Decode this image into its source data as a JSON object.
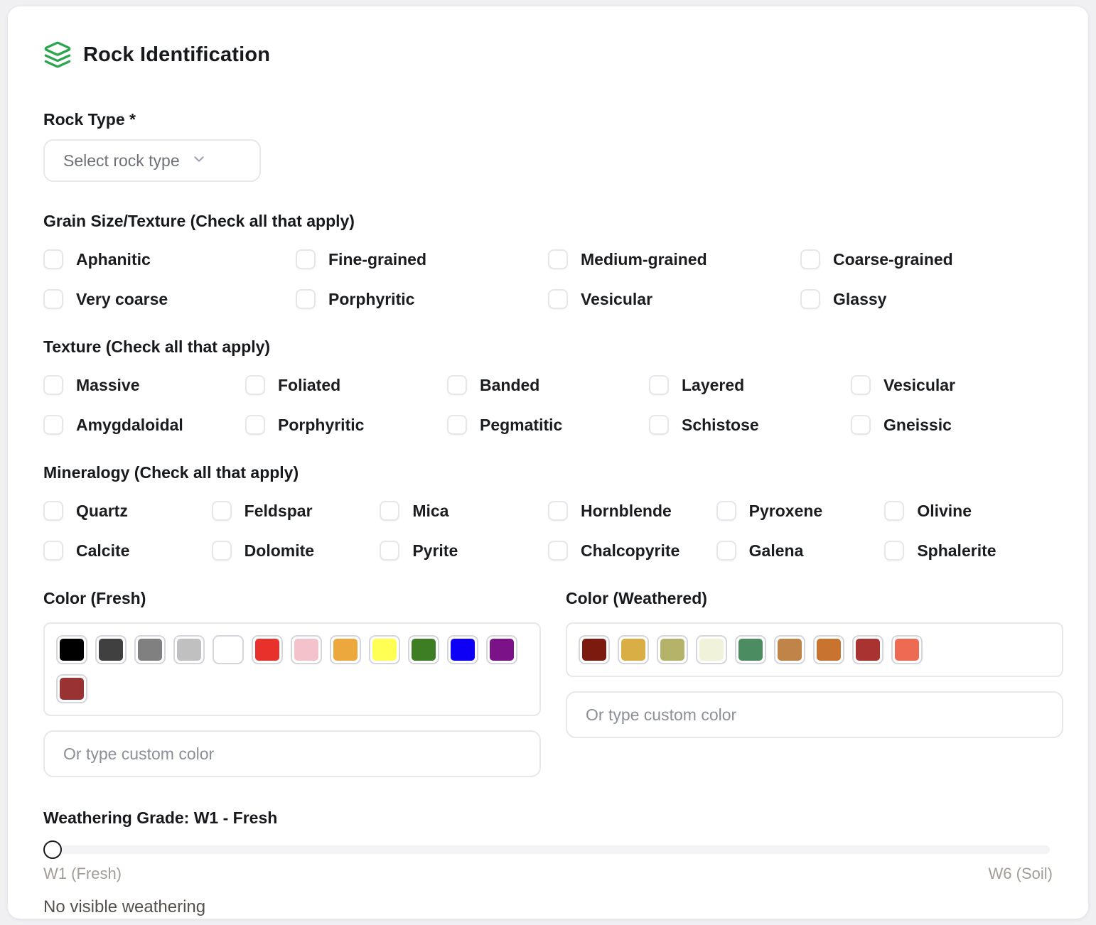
{
  "header": {
    "title": "Rock Identification"
  },
  "theme": {
    "accent_green": "#2da44e"
  },
  "rock_type": {
    "label": "Rock Type *",
    "placeholder": "Select rock type"
  },
  "groups": [
    {
      "id": "grain-size",
      "label": "Grain Size/Texture (Check all that apply)",
      "columns": 4,
      "options": [
        "Aphanitic",
        "Fine-grained",
        "Medium-grained",
        "Coarse-grained",
        "Very coarse",
        "Porphyritic",
        "Vesicular",
        "Glassy"
      ]
    },
    {
      "id": "texture",
      "label": "Texture (Check all that apply)",
      "columns": 5,
      "options": [
        "Massive",
        "Foliated",
        "Banded",
        "Layered",
        "Vesicular",
        "Amygdaloidal",
        "Porphyritic",
        "Pegmatitic",
        "Schistose",
        "Gneissic"
      ]
    },
    {
      "id": "mineralogy",
      "label": "Mineralogy (Check all that apply)",
      "columns": 6,
      "options": [
        "Quartz",
        "Feldspar",
        "Mica",
        "Hornblende",
        "Pyroxene",
        "Olivine",
        "Calcite",
        "Dolomite",
        "Pyrite",
        "Chalcopyrite",
        "Galena",
        "Sphalerite"
      ]
    }
  ],
  "color_fresh": {
    "label": "Color (Fresh)",
    "swatches": [
      "#000000",
      "#404040",
      "#808080",
      "#c0c0c0",
      "#ffffff",
      "#e8312a",
      "#f4c2cb",
      "#eda83d",
      "#ffff54",
      "#3d7d23",
      "#0d00f5",
      "#7b1287",
      "#993333"
    ],
    "custom_placeholder": "Or type custom color"
  },
  "color_weathered": {
    "label": "Color (Weathered)",
    "swatches": [
      "#7d1a10",
      "#d9ae45",
      "#b5b36a",
      "#f1f2da",
      "#4b8d61",
      "#c08348",
      "#c8732e",
      "#a83330",
      "#ec6b52"
    ],
    "custom_placeholder": "Or type custom color"
  },
  "weathering": {
    "label": "Weathering Grade: W1 - Fresh",
    "min_label": "W1 (Fresh)",
    "max_label": "W6 (Soil)",
    "description": "No visible weathering",
    "value": 1,
    "min": 1,
    "max": 6
  }
}
